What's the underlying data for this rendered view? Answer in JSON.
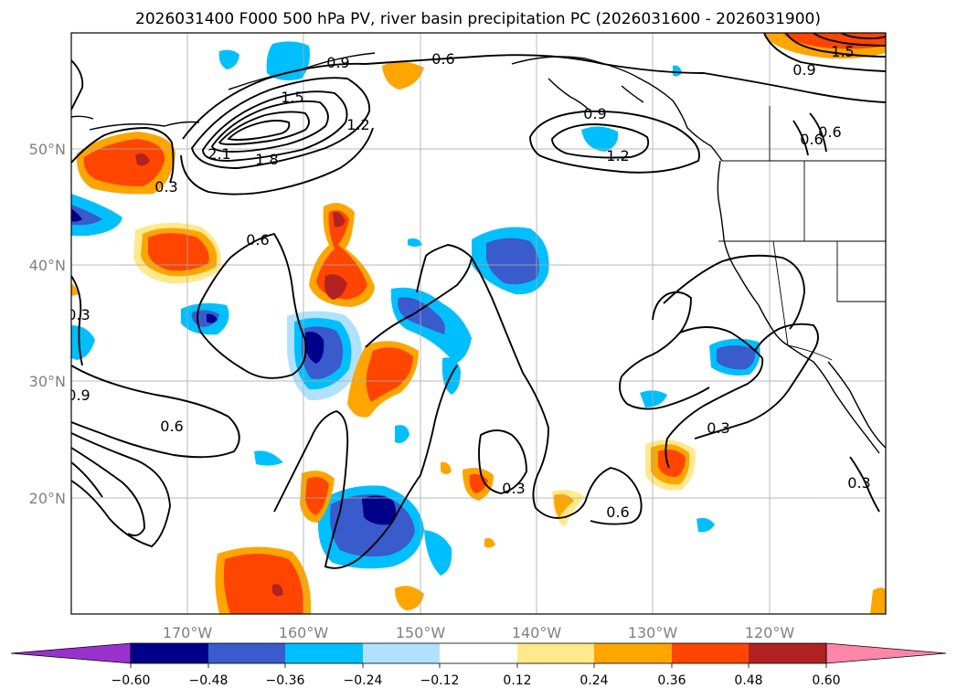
{
  "title": "2026031400 F000 500 hPa PV, river basin precipitation PC (2026031600 - 2026031900)",
  "map": {
    "lon_range": [
      -180,
      -110
    ],
    "lat_range": [
      10,
      60
    ],
    "x_ticks": [
      {
        "lon": -170,
        "label": "170°W"
      },
      {
        "lon": -160,
        "label": "160°W"
      },
      {
        "lon": -150,
        "label": "150°W"
      },
      {
        "lon": -140,
        "label": "140°W"
      },
      {
        "lon": -130,
        "label": "130°W"
      },
      {
        "lon": -120,
        "label": "120°W"
      }
    ],
    "y_ticks": [
      {
        "lat": 20,
        "label": "20°N"
      },
      {
        "lat": 30,
        "label": "30°N"
      },
      {
        "lat": 40,
        "label": "40°N"
      },
      {
        "lat": 50,
        "label": "50°N"
      }
    ]
  },
  "colorbar": {
    "ticks": [
      "−0.60",
      "−0.48",
      "−0.36",
      "−0.24",
      "−0.12",
      "0.12",
      "0.24",
      "0.36",
      "0.48",
      "0.60"
    ],
    "colors": [
      "#9932cc",
      "#00008b",
      "#3a5bcc",
      "#00bfff",
      "#b0e2ff",
      "#ffffff",
      "#ffe98a",
      "#ffa500",
      "#ff4500",
      "#b22222",
      "#ff85a9"
    ]
  },
  "contour_labels": [
    {
      "text": "0.6",
      "lon": -148.5,
      "lat": 56.8
    },
    {
      "text": "0.9",
      "lon": -156.9,
      "lat": 56.5
    },
    {
      "text": "1.5",
      "lon": -161.4,
      "lat": 53.3
    },
    {
      "text": "2.1",
      "lon": -165.0,
      "lat": 49.7
    },
    {
      "text": "1.8",
      "lon": -163.0,
      "lat": 49.1
    },
    {
      "text": "1.2",
      "lon": -155.8,
      "lat": 51.8
    },
    {
      "text": "0.3",
      "lon": -178.0,
      "lat": 47.2
    },
    {
      "text": "0.6",
      "lon": -163.5,
      "lat": 42.1
    },
    {
      "text": "0.9",
      "lon": -136.2,
      "lat": 52.8
    },
    {
      "text": "1.2",
      "lon": -133.7,
      "lat": 49.6
    },
    {
      "text": "1.5",
      "lon": -115.0,
      "lat": 58.5
    },
    {
      "text": "0.9",
      "lon": -115.7,
      "lat": 56.5
    },
    {
      "text": "0.6",
      "lon": -114.8,
      "lat": 51.0
    },
    {
      "text": "0.6",
      "lon": -113.2,
      "lat": 51.3
    },
    {
      "text": "0.3",
      "lon": -179.4,
      "lat": 35.2
    },
    {
      "text": "0.9",
      "lon": -179.6,
      "lat": 28.9
    },
    {
      "text": "0.6",
      "lon": -173.6,
      "lat": 26.4
    },
    {
      "text": "0.3",
      "lon": -144.2,
      "lat": 20.8
    },
    {
      "text": "0.6",
      "lon": -133.2,
      "lat": 18.6
    },
    {
      "text": "0.3",
      "lon": -125.6,
      "lat": 25.6
    },
    {
      "text": "0.3",
      "lon": -111.4,
      "lat": 21.0
    }
  ]
}
